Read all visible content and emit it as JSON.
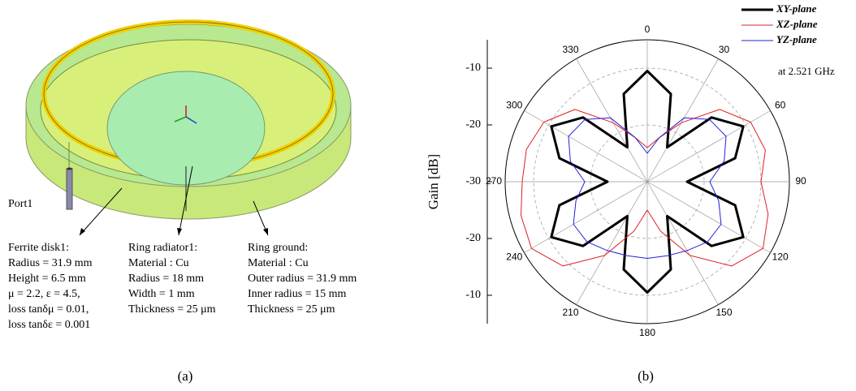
{
  "panel_a": {
    "caption": "(a)",
    "port_label": "Port1",
    "annotations": [
      {
        "lines": [
          "Ferrite disk1:",
          "Radius = 31.9 mm",
          "Height = 6.5 mm",
          "μ = 2.2, ε = 4.5,",
          "loss tanδμ = 0.01,",
          "loss tanδε = 0.001"
        ]
      },
      {
        "lines": [
          "Ring radiator1:",
          "Material : Cu",
          "Radius = 18 mm",
          "Width = 1 mm",
          "Thickness = 25 μm"
        ]
      },
      {
        "lines": [
          "Ring ground:",
          "Material : Cu",
          "Outer radius = 31.9 mm",
          "Inner radius = 15 mm",
          "Thickness = 25 μm"
        ]
      }
    ]
  },
  "chart_data": {
    "type": "polar",
    "caption": "(b)",
    "r_label": "Gain [dB]",
    "annotation": "at 2.521 GHz",
    "theta": [
      0,
      15,
      30,
      45,
      60,
      75,
      90,
      105,
      120,
      135,
      150,
      165,
      180,
      195,
      210,
      225,
      240,
      255,
      270,
      285,
      300,
      315,
      330,
      345
    ],
    "theta_ticks": [
      0,
      30,
      60,
      90,
      120,
      150,
      180,
      210,
      240,
      270,
      300,
      330
    ],
    "rlim": [
      -30,
      -5
    ],
    "rticks": [
      -30,
      -20,
      -10
    ],
    "grid": true,
    "series": [
      {
        "name": "XY-plane",
        "color": "#000000",
        "width": 3,
        "values": [
          -10.5,
          -14,
          -23,
          -14,
          -10.5,
          -14,
          -23,
          -14,
          -10.5,
          -14,
          -23,
          -14,
          -10.5,
          -14,
          -23,
          -14,
          -10.5,
          -14,
          -23,
          -14,
          -10.5,
          -14,
          -23,
          -14
        ]
      },
      {
        "name": "XZ-plane",
        "color": "#e02020",
        "width": 1,
        "values": [
          -24,
          -22,
          -18,
          -12,
          -9,
          -8.5,
          -10,
          -8,
          -6.5,
          -9,
          -15,
          -21,
          -25,
          -21,
          -15,
          -9,
          -6.5,
          -7,
          -8,
          -8,
          -9,
          -12,
          -18,
          -22
        ]
      },
      {
        "name": "YZ-plane",
        "color": "#2020e0",
        "width": 1,
        "values": [
          -25,
          -22,
          -17,
          -14.5,
          -14,
          -16,
          -19,
          -17,
          -15,
          -15,
          -16,
          -16.5,
          -16.5,
          -16.5,
          -16,
          -15,
          -15,
          -17,
          -19,
          -16,
          -14,
          -14.5,
          -17,
          -22
        ]
      }
    ]
  }
}
